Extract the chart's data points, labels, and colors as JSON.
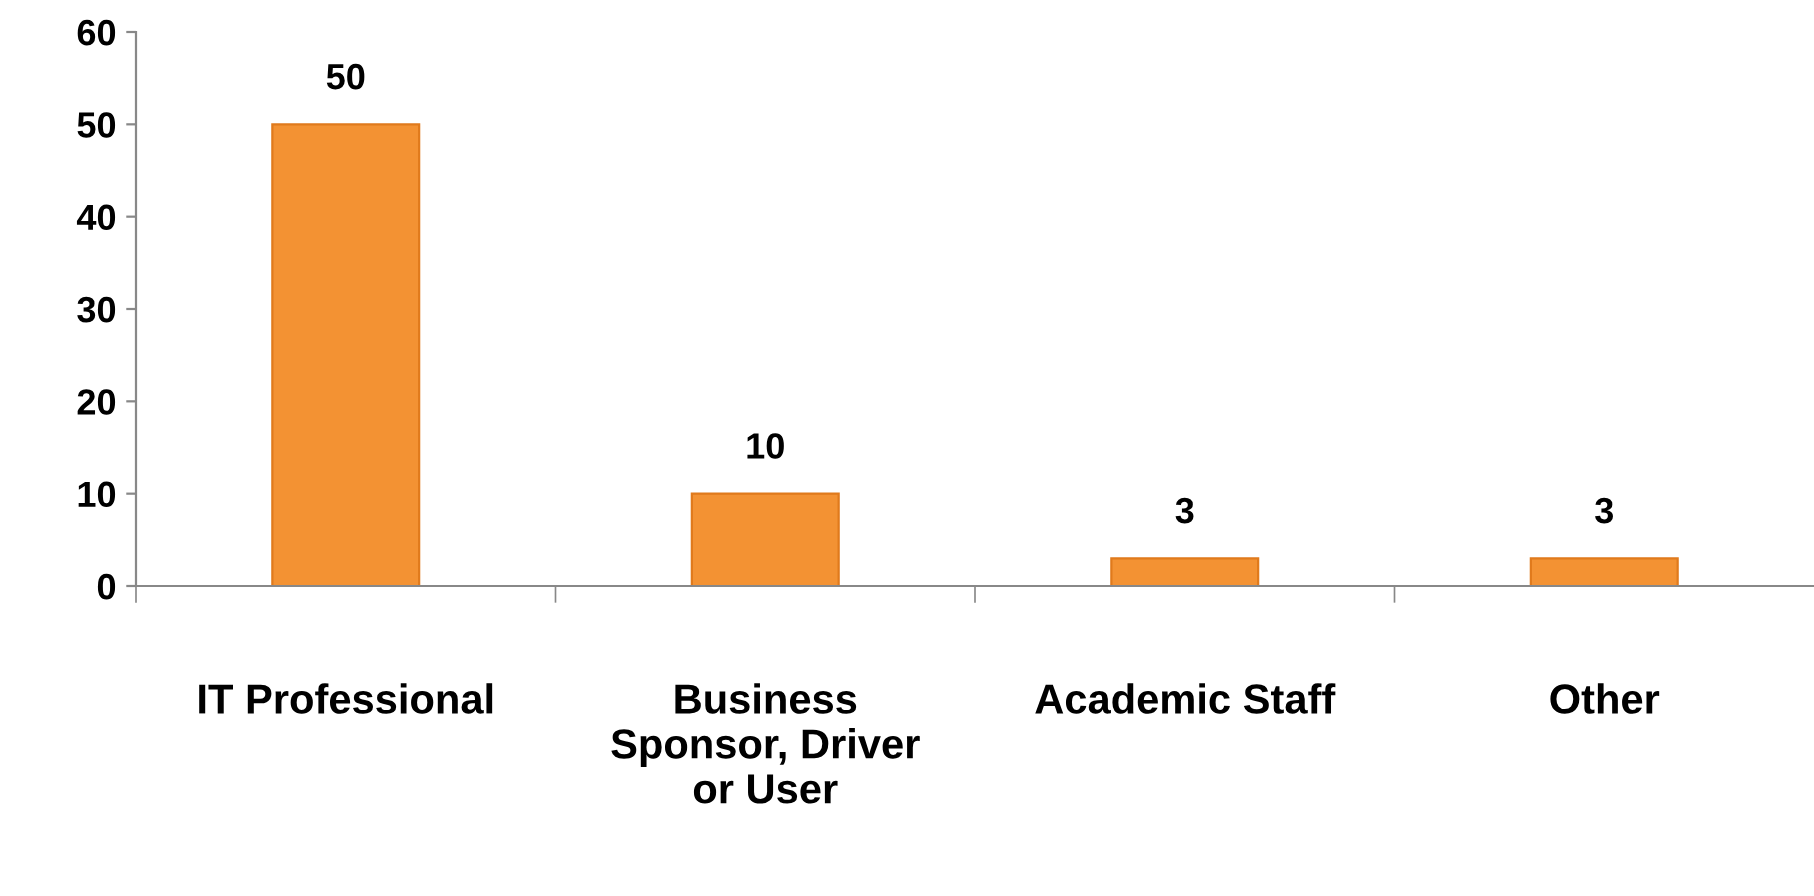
{
  "chart_data": {
    "type": "bar",
    "categories": [
      "IT Professional",
      "Business\nSponsor, Driver\nor User",
      "Academic Staff",
      "Other"
    ],
    "values": [
      50,
      10,
      3,
      3
    ],
    "color": "#f39233",
    "ylim": [
      0,
      60
    ],
    "yticks": [
      0,
      10,
      20,
      30,
      40,
      50,
      60
    ],
    "data_labels": true,
    "grid": false,
    "legend": false
  }
}
